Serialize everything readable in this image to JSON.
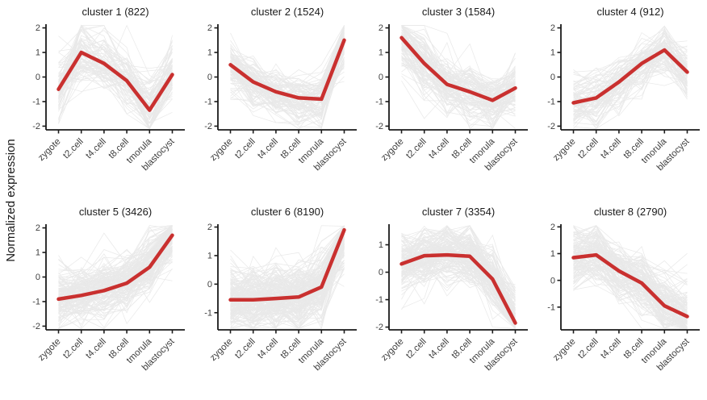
{
  "figure": {
    "ylabel": "Normalized expression"
  },
  "colors": {
    "mean_line": "#c9302f",
    "gene_line": "#dedede",
    "axis": "#1a1a1a",
    "tick_label": "#404040",
    "title": "#1a1a1a",
    "background": "#ffffff"
  },
  "chart_data": {
    "type": "line",
    "xlabel": "",
    "ylabel": "Normalized expression",
    "grid": false,
    "legend": "none",
    "categories": [
      "zygote",
      "t2.cell",
      "t4.cell",
      "t8.cell",
      "tmorula",
      "blastocyst"
    ],
    "facets": [
      {
        "title": "cluster 1 (822)",
        "cluster": 1,
        "count": 822,
        "mean": [
          -0.5,
          1.0,
          0.55,
          -0.15,
          -1.35,
          0.1
        ],
        "ylim": [
          -2.15,
          2.15
        ],
        "yticks": [
          -2,
          -1,
          0,
          1,
          2
        ]
      },
      {
        "title": "cluster 2 (1524)",
        "cluster": 2,
        "count": 1524,
        "mean": [
          0.5,
          -0.2,
          -0.6,
          -0.85,
          -0.9,
          1.5
        ],
        "ylim": [
          -2.15,
          2.15
        ],
        "yticks": [
          -2,
          -1,
          0,
          1,
          2
        ]
      },
      {
        "title": "cluster 3 (1584)",
        "cluster": 3,
        "count": 1584,
        "mean": [
          1.6,
          0.55,
          -0.3,
          -0.6,
          -0.95,
          -0.45
        ],
        "ylim": [
          -2.15,
          2.15
        ],
        "yticks": [
          -2,
          -1,
          0,
          1,
          2
        ]
      },
      {
        "title": "cluster 4 (912)",
        "cluster": 4,
        "count": 912,
        "mean": [
          -1.05,
          -0.85,
          -0.2,
          0.55,
          1.1,
          0.2
        ],
        "ylim": [
          -2.15,
          2.15
        ],
        "yticks": [
          -2,
          -1,
          0,
          1,
          2
        ]
      },
      {
        "title": "cluster 5 (3426)",
        "cluster": 5,
        "count": 3426,
        "mean": [
          -0.9,
          -0.75,
          -0.55,
          -0.25,
          0.4,
          1.7
        ],
        "ylim": [
          -2.15,
          2.15
        ],
        "yticks": [
          -2,
          -1,
          0,
          1,
          2
        ]
      },
      {
        "title": "cluster 6 (8190)",
        "cluster": 6,
        "count": 8190,
        "mean": [
          -0.55,
          -0.55,
          -0.5,
          -0.45,
          -0.1,
          1.9
        ],
        "ylim": [
          -1.6,
          2.1
        ],
        "yticks": [
          -1,
          0,
          1,
          2
        ]
      },
      {
        "title": "cluster 7 (3354)",
        "cluster": 7,
        "count": 3354,
        "mean": [
          0.3,
          0.6,
          0.63,
          0.58,
          -0.25,
          -1.85
        ],
        "ylim": [
          -2.1,
          1.75
        ],
        "yticks": [
          -2,
          -1,
          0,
          1
        ]
      },
      {
        "title": "cluster 8 (2790)",
        "cluster": 8,
        "count": 2790,
        "mean": [
          0.85,
          0.95,
          0.35,
          -0.1,
          -0.95,
          -1.35
        ],
        "ylim": [
          -1.85,
          2.1
        ],
        "yticks": [
          -1,
          0,
          1,
          2
        ]
      }
    ]
  }
}
